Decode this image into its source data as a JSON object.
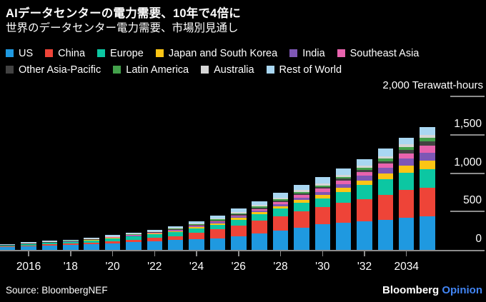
{
  "header": {
    "title": "AIデータセンターの電力需要、10年で4倍に",
    "subtitle": "世界のデータセンター電力需要、市場別見通し"
  },
  "footer": {
    "source": "Source: BloombergNEF",
    "brand": "Bloomberg",
    "brand_suffix": "Opinion",
    "brand_suffix_color": "#4285f4"
  },
  "chart_data": {
    "type": "bar",
    "stacked": true,
    "title": "世界のデータセンター電力需要、市場別見通し",
    "ylabel": "Terawatt-hours",
    "ylim": [
      0,
      2000
    ],
    "grid": "right-side tick lines only",
    "legend_position": "top, two rows",
    "x": [
      2015,
      2016,
      2017,
      2018,
      2019,
      2020,
      2021,
      2022,
      2023,
      2024,
      2025,
      2026,
      2027,
      2028,
      2029,
      2030,
      2031,
      2032,
      2033,
      2034,
      2035
    ],
    "x_ticks": [
      {
        "year": 2016,
        "label": "2016"
      },
      {
        "year": 2018,
        "label": "'18"
      },
      {
        "year": 2020,
        "label": "'20"
      },
      {
        "year": 2022,
        "label": "'22"
      },
      {
        "year": 2024,
        "label": "'24"
      },
      {
        "year": 2026,
        "label": "'26"
      },
      {
        "year": 2028,
        "label": "'28"
      },
      {
        "year": 2030,
        "label": "'30"
      },
      {
        "year": 2032,
        "label": "'32"
      },
      {
        "year": 2034,
        "label": "2034"
      }
    ],
    "y_ticks": [
      {
        "value": 2000,
        "label": "2,000 Terawatt-hours",
        "is_unit_label": true
      },
      {
        "value": 1500,
        "label": "1,500"
      },
      {
        "value": 1000,
        "label": "1,000"
      },
      {
        "value": 500,
        "label": "500"
      },
      {
        "value": 0,
        "label": "0"
      }
    ],
    "series": [
      {
        "name": "US",
        "color": "#1f99e0",
        "values": [
          36,
          45,
          54,
          61,
          72,
          86,
          98,
          112,
          126,
          143,
          151,
          180,
          213,
          248,
          290,
          334,
          352,
          370,
          395,
          420,
          435
        ]
      },
      {
        "name": "China",
        "color": "#ee4438",
        "values": [
          10,
          13,
          16,
          19,
          23,
          28,
          35,
          44,
          55,
          80,
          115,
          140,
          165,
          192,
          210,
          222,
          258,
          295,
          325,
          360,
          375
        ]
      },
      {
        "name": "Europe",
        "color": "#0cc7a2",
        "values": [
          16,
          20,
          24,
          27,
          31,
          38,
          42,
          47,
          52,
          57,
          62,
          74,
          87,
          100,
          110,
          118,
          142,
          180,
          200,
          225,
          240
        ]
      },
      {
        "name": "Japan and South Korea",
        "color": "#fcc515",
        "values": [
          3,
          4,
          5,
          6,
          7,
          8,
          10,
          12,
          14,
          16,
          18,
          22,
          26,
          31,
          37,
          43,
          53,
          62,
          76,
          95,
          110
        ]
      },
      {
        "name": "India",
        "color": "#7e57b5",
        "values": [
          2,
          2,
          2,
          3,
          3,
          4,
          5,
          6,
          8,
          11,
          15,
          19,
          23,
          28,
          34,
          41,
          49,
          57,
          70,
          88,
          105
        ]
      },
      {
        "name": "Southeast Asia",
        "color": "#e863ae",
        "values": [
          1,
          2,
          2,
          3,
          3,
          4,
          5,
          6,
          7,
          9,
          12,
          15,
          19,
          24,
          31,
          40,
          45,
          50,
          57,
          70,
          90
        ]
      },
      {
        "name": "Other Asia-Pacific",
        "color": "#424242",
        "values": [
          2,
          2,
          3,
          3,
          4,
          5,
          6,
          7,
          9,
          11,
          13,
          15,
          17,
          19,
          20,
          21,
          27,
          29,
          34,
          43,
          55
        ]
      },
      {
        "name": "Latin America",
        "color": "#43a14b",
        "values": [
          2,
          2,
          2,
          3,
          3,
          4,
          5,
          6,
          7,
          9,
          11,
          13,
          16,
          18,
          20,
          22,
          26,
          28,
          32,
          40,
          50
        ]
      },
      {
        "name": "Australia",
        "color": "#d6d6d6",
        "values": [
          1,
          2,
          2,
          2,
          3,
          4,
          5,
          6,
          8,
          11,
          14,
          17,
          20,
          23,
          25,
          26,
          28,
          31,
          33,
          36,
          40
        ]
      },
      {
        "name": "Rest of World",
        "color": "#a9d7f2",
        "values": [
          5,
          6,
          8,
          8,
          9,
          11,
          14,
          16,
          19,
          23,
          34,
          45,
          49,
          57,
          73,
          78,
          80,
          83,
          98,
          88,
          100
        ]
      }
    ],
    "totals": [
      78,
      98,
      118,
      135,
      158,
      192,
      225,
      262,
      305,
      370,
      445,
      540,
      635,
      740,
      850,
      945,
      1060,
      1185,
      1320,
      1465,
      1600
    ],
    "annotations": []
  }
}
